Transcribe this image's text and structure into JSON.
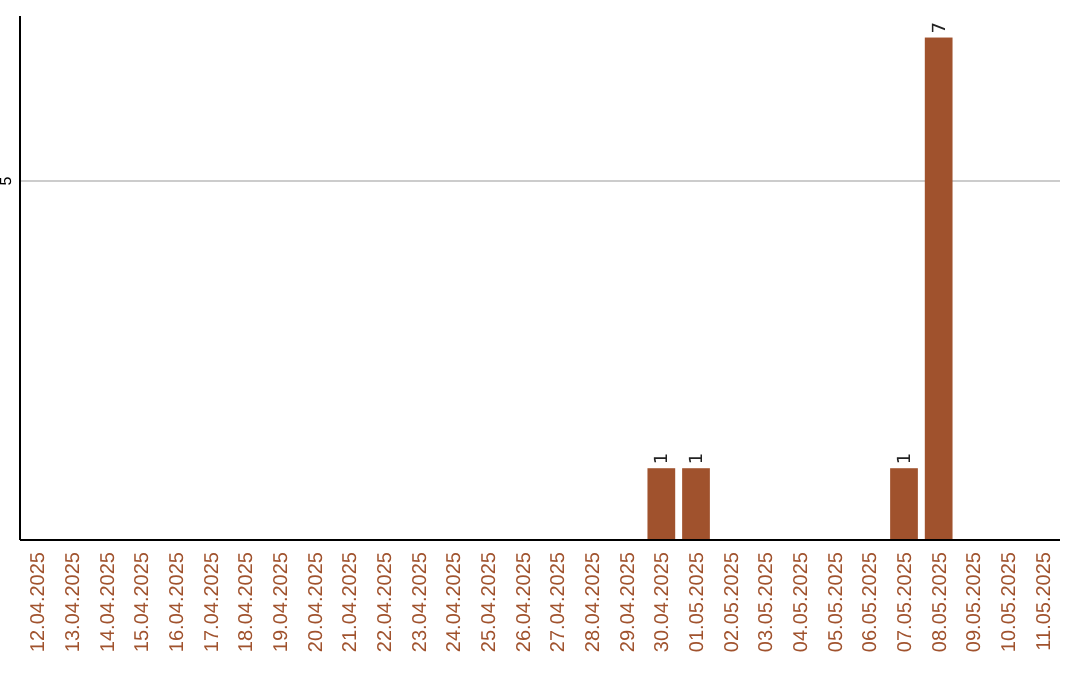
{
  "chart_data": {
    "type": "bar",
    "categories": [
      "12.04.2025",
      "13.04.2025",
      "14.04.2025",
      "15.04.2025",
      "16.04.2025",
      "17.04.2025",
      "18.04.2025",
      "19.04.2025",
      "20.04.2025",
      "21.04.2025",
      "22.04.2025",
      "23.04.2025",
      "24.04.2025",
      "25.04.2025",
      "26.04.2025",
      "27.04.2025",
      "28.04.2025",
      "29.04.2025",
      "30.04.2025",
      "01.05.2025",
      "02.05.2025",
      "03.05.2025",
      "04.05.2025",
      "05.05.2025",
      "06.05.2025",
      "07.05.2025",
      "08.05.2025",
      "09.05.2025",
      "10.05.2025",
      "11.05.2025"
    ],
    "values": [
      null,
      null,
      null,
      null,
      null,
      null,
      null,
      null,
      null,
      null,
      null,
      null,
      null,
      null,
      null,
      null,
      null,
      null,
      1,
      1,
      null,
      null,
      null,
      null,
      null,
      1,
      7,
      null,
      null,
      null
    ],
    "value_labels": [
      null,
      null,
      null,
      null,
      null,
      null,
      null,
      null,
      null,
      null,
      null,
      null,
      null,
      null,
      null,
      null,
      null,
      null,
      "1",
      "1",
      null,
      null,
      null,
      null,
      null,
      "1",
      "7",
      null,
      null,
      null
    ],
    "color": "#a0522d",
    "ylim": [
      0,
      7.3
    ],
    "yticks": [
      {
        "value": 0,
        "label": null
      },
      5
    ],
    "grid": "y"
  }
}
